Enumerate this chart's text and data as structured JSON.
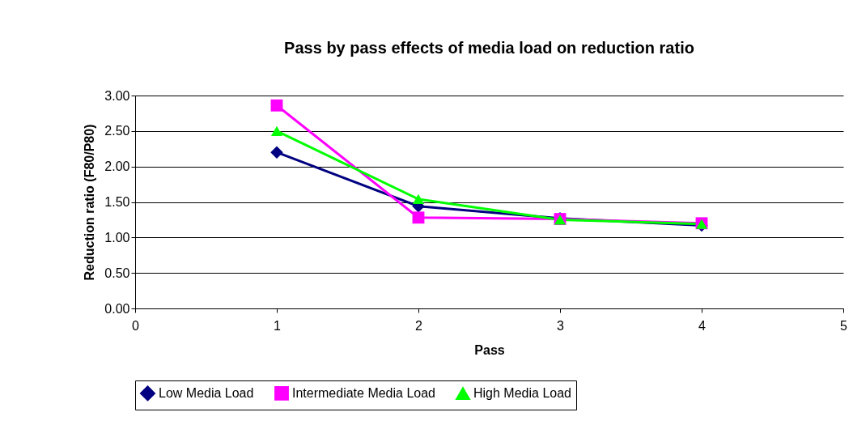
{
  "chart_data": {
    "type": "line",
    "title": "Pass by pass effects of media load on reduction ratio",
    "xlabel": "Pass",
    "ylabel": "Reduction ratio (F80/P80)",
    "x": [
      1,
      2,
      3,
      4
    ],
    "series": [
      {
        "name": "Low Media Load",
        "color": "#000080",
        "marker": "diamond",
        "values": [
          2.2,
          1.44,
          1.27,
          1.17
        ]
      },
      {
        "name": "Intermediate Media Load",
        "color": "#ff00ff",
        "marker": "square",
        "values": [
          2.86,
          1.28,
          1.26,
          1.2
        ]
      },
      {
        "name": "High Media Load",
        "color": "#00ff00",
        "marker": "triangle",
        "values": [
          2.5,
          1.54,
          1.25,
          1.19
        ]
      }
    ],
    "xlim": [
      0,
      5
    ],
    "xticks": [
      0,
      1,
      2,
      3,
      4,
      5
    ],
    "ylim": [
      0,
      3
    ],
    "yticks": [
      {
        "value": 0,
        "label": "0.00"
      },
      {
        "value": 0.5,
        "label": "0.50"
      },
      {
        "value": 1,
        "label": "1.00"
      },
      {
        "value": 1.5,
        "label": "1.50"
      },
      {
        "value": 2,
        "label": "2.00"
      },
      {
        "value": 2.5,
        "label": "2.50"
      },
      {
        "value": 3,
        "label": "3.00"
      }
    ],
    "grid": "y",
    "legend": "bottom",
    "line_style": "solid"
  }
}
